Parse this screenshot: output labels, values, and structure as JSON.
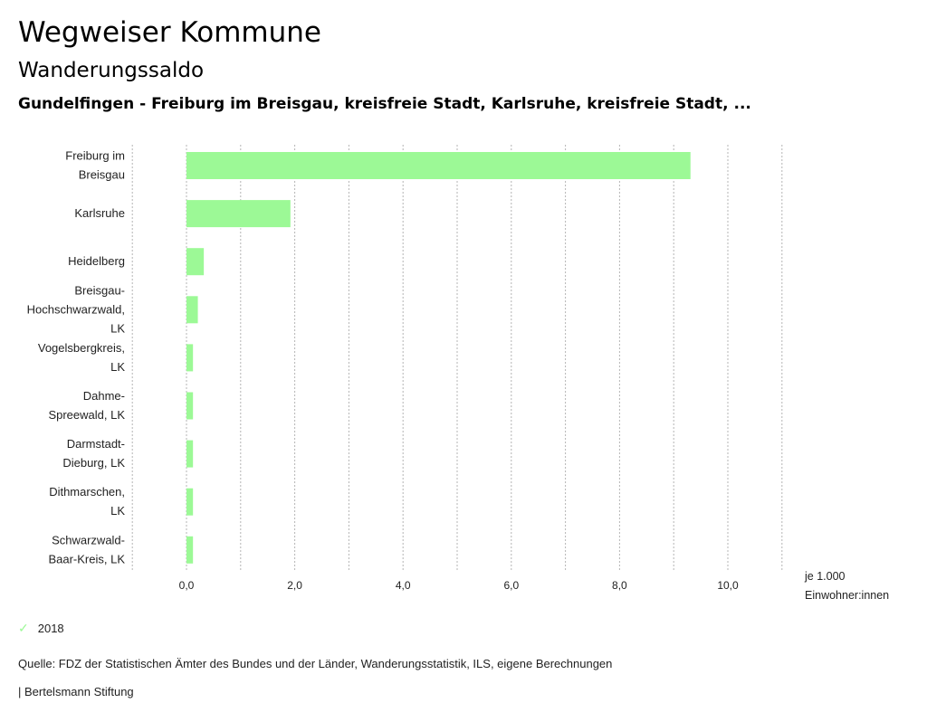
{
  "header": {
    "title": "Wegweiser Kommune",
    "subtitle": "Wanderungssaldo",
    "selection": "Gundelfingen - Freiburg im Breisgau, kreisfreie Stadt, Karlsruhe, kreisfreie Stadt, ..."
  },
  "chart_data": {
    "type": "bar",
    "orientation": "horizontal",
    "title": "Wanderungssaldo",
    "categories": [
      [
        "Freiburg im",
        "Breisgau"
      ],
      [
        "Karlsruhe"
      ],
      [
        "Heidelberg"
      ],
      [
        "Breisgau-",
        "Hochschwarzwald,",
        "LK"
      ],
      [
        "Vogelsbergkreis,",
        "LK"
      ],
      [
        "Dahme-",
        "Spreewald, LK"
      ],
      [
        "Darmstadt-",
        "Dieburg, LK"
      ],
      [
        "Dithmarschen,",
        "LK"
      ],
      [
        "Schwarzwald-",
        "Baar-Kreis, LK"
      ]
    ],
    "series": [
      {
        "name": "2018",
        "color": "#9cf996",
        "values": [
          9.31,
          1.92,
          0.32,
          0.21,
          0.12,
          0.12,
          0.12,
          0.12,
          0.12
        ]
      }
    ],
    "xlim": [
      -1,
      11
    ],
    "xticks": [
      0,
      2,
      4,
      6,
      8,
      10
    ],
    "xtick_labels": [
      "0,0",
      "2,0",
      "4,0",
      "6,0",
      "8,0",
      "10,0"
    ],
    "gridlines": [
      -1,
      0,
      1,
      2,
      3,
      4,
      5,
      6,
      7,
      8,
      9,
      10,
      11
    ],
    "grid": true,
    "xlabel": "je 1.000 Einwohner:innen",
    "legend_position": "bottom-left"
  },
  "axis_unit": {
    "line1": "je 1.000",
    "line2": "Einwohner:innen"
  },
  "legend": {
    "items": [
      {
        "label": "2018",
        "icon": "check-icon",
        "color": "#9cf996"
      }
    ]
  },
  "footer": {
    "source": "Quelle: FDZ der Statistischen Ämter des Bundes und der Länder, Wanderungsstatistik, ILS, eigene Berechnungen",
    "credit": "| Bertelsmann Stiftung"
  }
}
